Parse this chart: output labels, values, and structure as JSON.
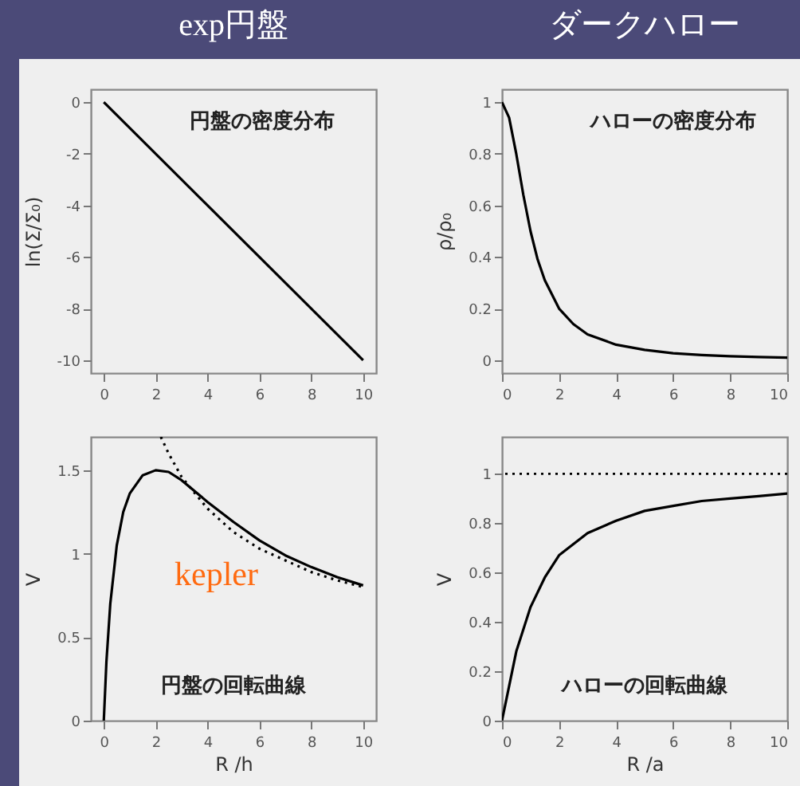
{
  "chart_data": [
    {
      "type": "line",
      "title": "exp円盤",
      "ylabel": "ln(Σ/Σ₀)",
      "annotations": [
        "円盤の密度分布"
      ],
      "xlim": [
        -0.5,
        10.5
      ],
      "ylim": [
        -10.5,
        0.5
      ],
      "xticks": [
        0,
        2,
        4,
        6,
        8,
        10
      ],
      "yticks": [
        0,
        -2,
        -4,
        -6,
        -8,
        -10
      ],
      "series": [
        {
          "color": "#000000",
          "x": [
            0,
            10
          ],
          "values": [
            0,
            -10
          ]
        }
      ]
    },
    {
      "type": "line",
      "title": "ダークハロー",
      "ylabel": "ρ/ρ₀",
      "annotations": [
        "ハローの密度分布"
      ],
      "xlim": [
        0,
        10
      ],
      "ylim": [
        -0.05,
        1.05
      ],
      "xticks": [
        0,
        2,
        4,
        6,
        8,
        10
      ],
      "yticks": [
        0,
        0.2,
        0.4,
        0.6,
        0.8,
        1
      ],
      "series": [
        {
          "color": "#000000",
          "x": [
            0,
            0.25,
            0.5,
            0.75,
            1,
            1.25,
            1.5,
            2,
            2.5,
            3,
            4,
            5,
            6,
            7,
            8,
            9,
            10
          ],
          "values": [
            1,
            0.94,
            0.8,
            0.64,
            0.5,
            0.39,
            0.31,
            0.2,
            0.14,
            0.1,
            0.06,
            0.04,
            0.027,
            0.02,
            0.015,
            0.012,
            0.01
          ]
        }
      ]
    },
    {
      "type": "line",
      "xlabel": "R /h",
      "ylabel": "V",
      "annotations": [
        "円盤の回転曲線",
        "kepler"
      ],
      "xlim": [
        -0.5,
        10.5
      ],
      "ylim": [
        0,
        1.7
      ],
      "xticks": [
        0,
        2,
        4,
        6,
        8,
        10
      ],
      "yticks": [
        0,
        0.5,
        1,
        1.5
      ],
      "series": [
        {
          "color": "#000000",
          "line_style": "solid",
          "x": [
            0,
            0.1,
            0.25,
            0.5,
            0.75,
            1,
            1.5,
            2,
            2.5,
            3,
            4,
            5,
            6,
            7,
            8,
            9,
            10
          ],
          "values": [
            0,
            0.35,
            0.7,
            1.05,
            1.25,
            1.36,
            1.47,
            1.5,
            1.49,
            1.44,
            1.31,
            1.19,
            1.08,
            0.99,
            0.92,
            0.86,
            0.81
          ]
        },
        {
          "color": "#000000",
          "line_style": "dotted",
          "x": [
            2.2,
            2.5,
            3,
            4,
            5,
            6,
            7,
            8,
            9,
            10
          ],
          "values": [
            1.7,
            1.6,
            1.46,
            1.27,
            1.13,
            1.03,
            0.96,
            0.89,
            0.84,
            0.8
          ]
        }
      ]
    },
    {
      "type": "line",
      "xlabel": "R /a",
      "ylabel": "V",
      "annotations": [
        "ハローの回転曲線"
      ],
      "xlim": [
        0,
        10
      ],
      "ylim": [
        0,
        1.15
      ],
      "xticks": [
        0,
        2,
        4,
        6,
        8,
        10
      ],
      "yticks": [
        0,
        0.2,
        0.4,
        0.6,
        0.8,
        1
      ],
      "ref_lines": [
        {
          "axis": "y",
          "value": 1,
          "line_style": "dotted",
          "color": "#000000"
        }
      ],
      "series": [
        {
          "color": "#000000",
          "x": [
            0,
            0.25,
            0.5,
            1,
            1.5,
            2,
            3,
            4,
            5,
            6,
            7,
            8,
            9,
            10
          ],
          "values": [
            0,
            0.14,
            0.28,
            0.46,
            0.58,
            0.67,
            0.76,
            0.81,
            0.85,
            0.87,
            0.89,
            0.9,
            0.91,
            0.92
          ]
        }
      ]
    }
  ]
}
